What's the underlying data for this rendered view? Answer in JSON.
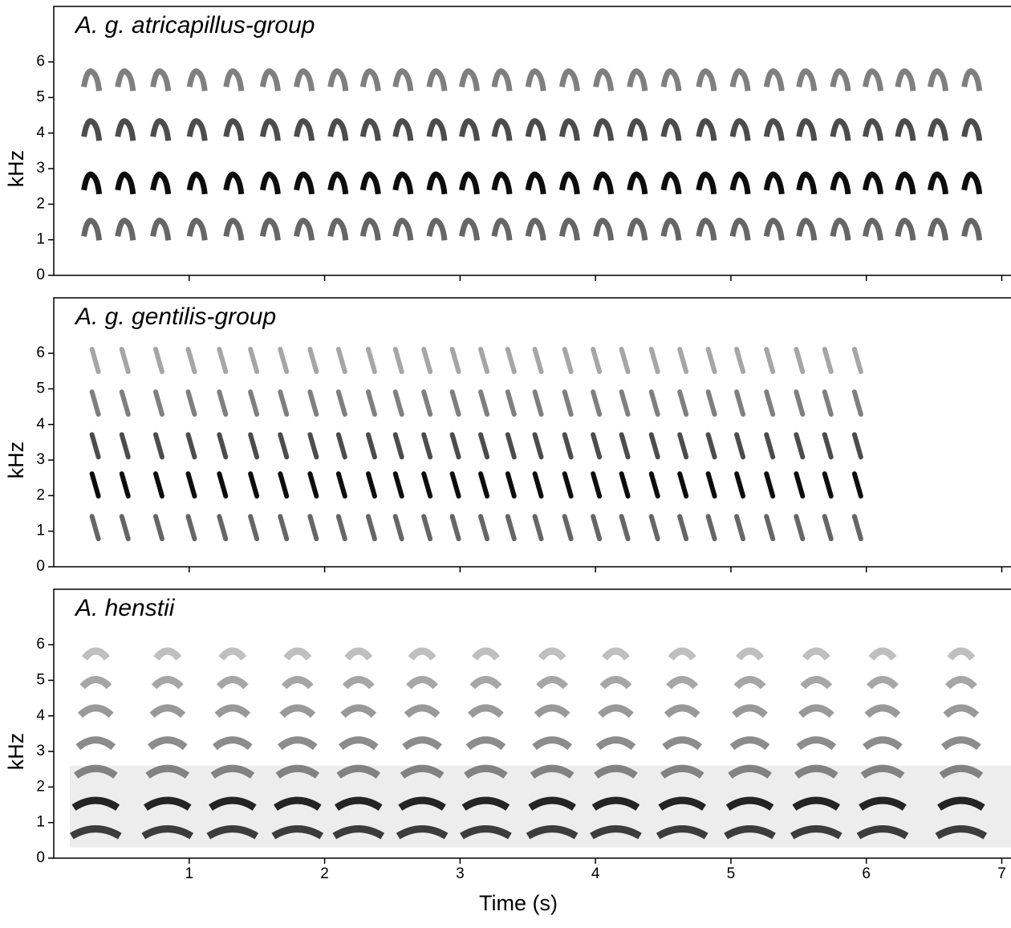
{
  "chart_data": [
    {
      "type": "spectrogram",
      "title": "A. g. atricapillus-group",
      "ylabel": "kHz",
      "color": "#000000",
      "notes_x": [
        0.27,
        0.52,
        0.78,
        1.05,
        1.32,
        1.59,
        1.84,
        2.09,
        2.33,
        2.57,
        2.82,
        3.06,
        3.3,
        3.55,
        3.8,
        4.05,
        4.3,
        4.55,
        4.81,
        5.06,
        5.31,
        5.55,
        5.8,
        6.04,
        6.28,
        6.52,
        6.77
      ],
      "harmonics": [
        1.3,
        2.6,
        4.1,
        5.5
      ],
      "xlim": [
        0,
        7.08
      ],
      "xticks": [
        1,
        2,
        3,
        4,
        5,
        6,
        7
      ],
      "show_xtick_labels": false,
      "ylim": [
        0,
        7.56
      ],
      "yticks": [
        0,
        1,
        2,
        3,
        4,
        5,
        6
      ]
    },
    {
      "type": "spectrogram",
      "title": "A. g. gentilis-group",
      "ylabel": "kHz",
      "color": "#000000",
      "notes_x": [
        0.3,
        0.52,
        0.77,
        1.01,
        1.24,
        1.47,
        1.69,
        1.91,
        2.12,
        2.34,
        2.54,
        2.75,
        2.96,
        3.17,
        3.37,
        3.57,
        3.79,
        4.0,
        4.21,
        4.43,
        4.64,
        4.85,
        5.06,
        5.28,
        5.5,
        5.71,
        5.93
      ],
      "harmonics": [
        1.1,
        2.3,
        3.4,
        4.6,
        5.8
      ],
      "xlim": [
        0,
        7.08
      ],
      "xticks": [
        1,
        2,
        3,
        4,
        5,
        6,
        7
      ],
      "show_xtick_labels": false,
      "ylim": [
        0,
        7.56
      ],
      "yticks": [
        0,
        1,
        2,
        3,
        4,
        5,
        6
      ]
    },
    {
      "type": "spectrogram-broad",
      "title": "A. henstii",
      "ylabel": "kHz",
      "xlabel": "Time (s)",
      "color": "#000000",
      "notes_x": [
        0.31,
        0.84,
        1.32,
        1.8,
        2.25,
        2.72,
        3.19,
        3.68,
        4.15,
        4.64,
        5.14,
        5.63,
        6.12,
        6.7
      ],
      "harmonics": [
        0.8,
        1.6,
        2.5,
        3.3,
        4.2,
        5.0,
        5.8
      ],
      "xlim": [
        0,
        7.08
      ],
      "xticks": [
        1,
        2,
        3,
        4,
        5,
        6,
        7
      ],
      "show_xtick_labels": true,
      "ylim": [
        0,
        7.56
      ],
      "yticks": [
        0,
        1,
        2,
        3,
        4,
        5,
        6
      ]
    }
  ]
}
